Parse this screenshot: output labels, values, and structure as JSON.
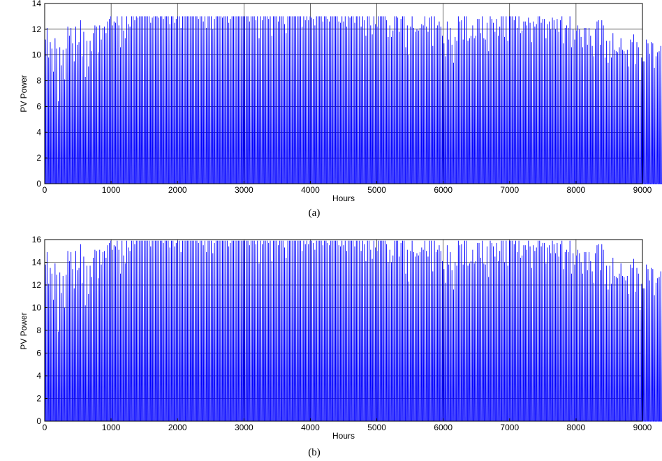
{
  "chart_data": [
    {
      "type": "line",
      "panel_label": "(a)",
      "xlabel": "Hours",
      "ylabel": "PV Power",
      "xlim": [
        0,
        9000
      ],
      "ylim": [
        0,
        14
      ],
      "xticks": [
        0,
        1000,
        2000,
        3000,
        4000,
        5000,
        6000,
        7000,
        8000,
        9000
      ],
      "yticks": [
        0,
        2,
        4,
        6,
        8,
        10,
        12,
        14
      ],
      "grid": true,
      "series_color": "#0000ff",
      "series": [
        {
          "x_start": 0,
          "x_step": 24,
          "daily_peaks": [
            11.2,
            12.1,
            9.8,
            11.0,
            10.5,
            8.7,
            11.3,
            10.5,
            6.4,
            10.6,
            9.2,
            10.4,
            8.1,
            10.5,
            12.2,
            11.5,
            12.1,
            10.9,
            9.5,
            12.2,
            10.8,
            11.0,
            12.7,
            9.9,
            11.8,
            8.3,
            11.1,
            9.1,
            11.1,
            10.3,
            11.7,
            12.3,
            12.2,
            10.2,
            12.3,
            11.2,
            12.1,
            12.2,
            11.7,
            12.6,
            12.8,
            13.0,
            12.3,
            12.6,
            12.5,
            13.0,
            12.3,
            10.6,
            13.0,
            11.9,
            11.3,
            13.0,
            12.4,
            12.2,
            13.0,
            13.0,
            12.7,
            13.0,
            12.9,
            13.0,
            13.0,
            13.0,
            13.0,
            13.0,
            13.0,
            13.0,
            12.5,
            12.9,
            13.0,
            13.0,
            13.0,
            12.9,
            13.0,
            13.0,
            12.8,
            13.0,
            13.0,
            13.0,
            12.4,
            13.0,
            13.0,
            12.5,
            12.8,
            13.0,
            13.0,
            12.1,
            13.0,
            13.0,
            13.0,
            13.0,
            13.0,
            13.0,
            13.0,
            13.0,
            13.0,
            13.0,
            12.8,
            13.0,
            13.0,
            12.6,
            13.0,
            12.1,
            13.0,
            13.0,
            13.0,
            12.0,
            12.8,
            13.0,
            13.0,
            13.0,
            13.0,
            12.9,
            13.0,
            13.0,
            13.0,
            12.5,
            12.8,
            13.0,
            13.0,
            13.0,
            13.0,
            13.0,
            13.0,
            13.0,
            13.0,
            13.0,
            13.0,
            13.0,
            12.6,
            13.0,
            13.0,
            13.0,
            12.7,
            13.0,
            11.3,
            13.0,
            12.7,
            13.0,
            13.0,
            13.0,
            12.8,
            13.0,
            11.5,
            13.0,
            13.0,
            13.0,
            12.6,
            13.0,
            13.0,
            13.0,
            12.4,
            11.7,
            13.0,
            13.0,
            13.0,
            13.0,
            13.0,
            13.0,
            13.0,
            13.0,
            13.0,
            12.2,
            13.0,
            12.7,
            13.0,
            12.7,
            13.0,
            12.9,
            12.8,
            12.3,
            13.0,
            13.0,
            13.0,
            13.0,
            12.6,
            13.0,
            13.0,
            12.8,
            12.6,
            13.0,
            13.0,
            13.0,
            13.0,
            13.0,
            12.6,
            12.5,
            13.0,
            12.6,
            13.0,
            12.2,
            13.0,
            12.9,
            13.0,
            13.0,
            12.5,
            13.0,
            13.0,
            13.0,
            12.2,
            13.0,
            12.7,
            11.5,
            13.0,
            13.0,
            12.3,
            11.6,
            13.0,
            12.4,
            12.2,
            13.0,
            13.0,
            13.0,
            13.0,
            13.0,
            12.7,
            11.4,
            12.3,
            11.4,
            11.9,
            13.0,
            13.0,
            12.9,
            11.8,
            12.8,
            13.0,
            13.0,
            10.6,
            12.3,
            10.0,
            12.2,
            13.0,
            12.1,
            11.8,
            12.0,
            11.9,
            12.1,
            12.4,
            12.3,
            13.0,
            12.2,
            11.8,
            12.9,
            13.0,
            10.7,
            13.0,
            12.1,
            12.3,
            12.6,
            12.2,
            11.5,
            10.9,
            9.9,
            12.6,
            11.2,
            12.1,
            10.8,
            9.4,
            11.4,
            11.1,
            13.0,
            12.6,
            12.7,
            11.2,
            13.0,
            13.0,
            11.1,
            11.3,
            11.5,
            12.3,
            11.3,
            11.5,
            12.8,
            12.8,
            11.7,
            13.0,
            11.3,
            11.2,
            12.5,
            10.3,
            13.0,
            12.8,
            12.5,
            11.8,
            12.8,
            11.5,
            12.2,
            13.0,
            13.0,
            11.4,
            13.0,
            11.1,
            13.0,
            13.0,
            13.0,
            12.7,
            13.0,
            12.1,
            13.0,
            11.7,
            11.9,
            12.6,
            12.6,
            12.3,
            12.9,
            12.5,
            11.0,
            12.6,
            12.2,
            12.4,
            13.0,
            13.0,
            12.5,
            12.8,
            12.8,
            11.3,
            12.4,
            12.6,
            12.0,
            12.9,
            12.7,
            12.0,
            12.8,
            11.8,
            12.7,
            13.0,
            10.9,
            12.1,
            12.3,
            12.1,
            13.0,
            10.6,
            12.0,
            11.2,
            11.9,
            12.3,
            12.0,
            11.4,
            10.6,
            12.1,
            12.1,
            10.8,
            12.1,
            11.5,
            10.7,
            9.9,
            12.0,
            12.6,
            12.7,
            10.8,
            12.7,
            12.3,
            9.8,
            11.1,
            9.4,
            11.1,
            9.8,
            11.7,
            10.4,
            10.3,
            10.2,
            10.6,
            11.3,
            10.4,
            10.3,
            10.1,
            10.4,
            9.1,
            11.2,
            11.0,
            11.6,
            9.3,
            11.0,
            10.6,
            8.0,
            9.8,
            9.5,
            9.5,
            11.2,
            10.9,
            10.1,
            11.0,
            10.9,
            9.0,
            9.9,
            10.2,
            10.3,
            10.7,
            10.3,
            11.0,
            11.2,
            11.1,
            10.7,
            10.8,
            10.4,
            10.8,
            9.2,
            9.6,
            10.2,
            7.8
          ]
        }
      ]
    },
    {
      "type": "line",
      "panel_label": "(b)",
      "xlabel": "Hours",
      "ylabel": "PV Power",
      "xlim": [
        0,
        9000
      ],
      "ylim": [
        0,
        16
      ],
      "xticks": [
        0,
        1000,
        2000,
        3000,
        4000,
        5000,
        6000,
        7000,
        8000,
        9000
      ],
      "yticks": [
        0,
        2,
        4,
        6,
        8,
        10,
        12,
        14,
        16
      ],
      "grid": true,
      "series_color": "#0000ff",
      "series": [
        {
          "x_start": 0,
          "x_step": 24,
          "daily_peaks": [
            13.8,
            14.9,
            12.1,
            13.5,
            13.0,
            10.7,
            13.9,
            12.9,
            7.9,
            13.1,
            11.3,
            12.8,
            10.0,
            12.9,
            15.0,
            14.1,
            14.9,
            13.4,
            11.7,
            15.0,
            13.3,
            13.5,
            15.6,
            12.2,
            14.5,
            10.2,
            13.7,
            11.2,
            13.7,
            12.7,
            14.4,
            15.1,
            15.0,
            12.6,
            15.1,
            13.8,
            14.9,
            15.0,
            14.4,
            15.5,
            15.7,
            15.9,
            15.1,
            15.5,
            15.4,
            15.9,
            15.1,
            13.0,
            15.9,
            14.6,
            13.9,
            15.9,
            15.3,
            15.0,
            15.9,
            15.9,
            15.6,
            15.9,
            15.9,
            15.9,
            15.9,
            15.9,
            15.9,
            15.9,
            15.9,
            15.9,
            15.4,
            15.9,
            15.9,
            15.9,
            15.9,
            15.9,
            15.9,
            15.9,
            15.7,
            15.9,
            15.9,
            15.9,
            15.3,
            15.9,
            15.9,
            15.4,
            15.7,
            15.9,
            15.9,
            14.9,
            15.9,
            15.9,
            15.9,
            15.9,
            15.9,
            15.9,
            15.9,
            15.9,
            15.9,
            15.9,
            15.7,
            15.9,
            15.9,
            15.5,
            15.9,
            14.9,
            15.9,
            15.9,
            15.9,
            14.8,
            15.7,
            15.9,
            15.9,
            15.9,
            15.9,
            15.9,
            15.9,
            15.9,
            15.9,
            15.4,
            15.7,
            15.9,
            15.9,
            15.9,
            15.9,
            15.9,
            15.9,
            15.9,
            15.9,
            15.9,
            15.9,
            15.9,
            15.5,
            15.9,
            15.9,
            15.9,
            15.6,
            15.9,
            13.9,
            15.9,
            15.6,
            15.9,
            15.9,
            15.9,
            15.7,
            15.9,
            14.1,
            15.9,
            15.9,
            15.9,
            15.5,
            15.9,
            15.9,
            15.9,
            15.3,
            14.4,
            15.9,
            15.9,
            15.9,
            15.9,
            15.9,
            15.9,
            15.9,
            15.9,
            15.9,
            15.0,
            15.9,
            15.6,
            15.9,
            15.6,
            15.9,
            15.9,
            15.7,
            15.1,
            15.9,
            15.9,
            15.9,
            15.9,
            15.5,
            15.9,
            15.9,
            15.7,
            15.5,
            15.9,
            15.9,
            15.9,
            15.9,
            15.9,
            15.5,
            15.4,
            15.9,
            15.5,
            15.9,
            15.0,
            15.9,
            15.9,
            15.9,
            15.9,
            15.4,
            15.9,
            15.9,
            15.9,
            15.0,
            15.9,
            15.6,
            14.1,
            15.9,
            15.9,
            15.1,
            14.3,
            15.9,
            15.3,
            15.0,
            15.9,
            15.9,
            15.9,
            15.9,
            15.9,
            15.6,
            14.0,
            15.1,
            14.0,
            14.6,
            15.9,
            15.9,
            15.9,
            14.5,
            15.7,
            15.9,
            15.9,
            13.0,
            15.1,
            12.3,
            15.0,
            15.9,
            14.9,
            14.5,
            14.8,
            14.6,
            14.9,
            15.3,
            15.1,
            15.9,
            15.0,
            14.5,
            15.9,
            15.9,
            13.2,
            15.9,
            14.9,
            15.1,
            15.5,
            15.0,
            14.1,
            13.4,
            12.2,
            15.5,
            13.8,
            14.9,
            13.3,
            11.6,
            14.0,
            13.7,
            15.9,
            15.5,
            15.6,
            13.8,
            15.9,
            15.9,
            13.7,
            13.9,
            14.1,
            15.1,
            13.9,
            14.1,
            15.7,
            15.7,
            14.4,
            15.9,
            13.9,
            13.8,
            15.4,
            12.7,
            15.9,
            15.7,
            15.4,
            14.5,
            15.7,
            14.1,
            15.0,
            15.9,
            15.9,
            14.0,
            15.9,
            13.7,
            15.9,
            15.9,
            15.9,
            15.6,
            15.9,
            14.9,
            15.9,
            14.4,
            14.6,
            15.5,
            15.5,
            15.1,
            15.9,
            15.4,
            13.5,
            15.5,
            15.0,
            15.3,
            15.9,
            15.9,
            15.4,
            15.7,
            15.7,
            13.9,
            15.3,
            15.5,
            14.8,
            15.9,
            15.6,
            14.8,
            15.7,
            14.5,
            15.6,
            15.9,
            13.4,
            14.9,
            15.1,
            14.9,
            15.9,
            13.0,
            14.8,
            13.8,
            14.6,
            15.1,
            14.8,
            14.0,
            13.0,
            14.9,
            14.9,
            13.3,
            14.9,
            14.1,
            13.2,
            12.2,
            14.8,
            15.5,
            15.6,
            13.3,
            15.6,
            15.1,
            12.1,
            13.7,
            11.6,
            13.7,
            12.1,
            14.4,
            12.8,
            12.7,
            12.6,
            13.0,
            13.9,
            12.8,
            12.7,
            12.4,
            12.8,
            11.2,
            13.8,
            13.5,
            14.3,
            11.4,
            13.5,
            13.0,
            9.8,
            12.1,
            11.7,
            11.7,
            13.8,
            13.4,
            12.4,
            13.5,
            13.4,
            11.1,
            12.2,
            12.6,
            12.7,
            13.2,
            12.7,
            13.5,
            13.8,
            13.7,
            13.2,
            13.3,
            12.8,
            13.3,
            11.3,
            11.8,
            12.6,
            9.6
          ]
        }
      ]
    }
  ]
}
